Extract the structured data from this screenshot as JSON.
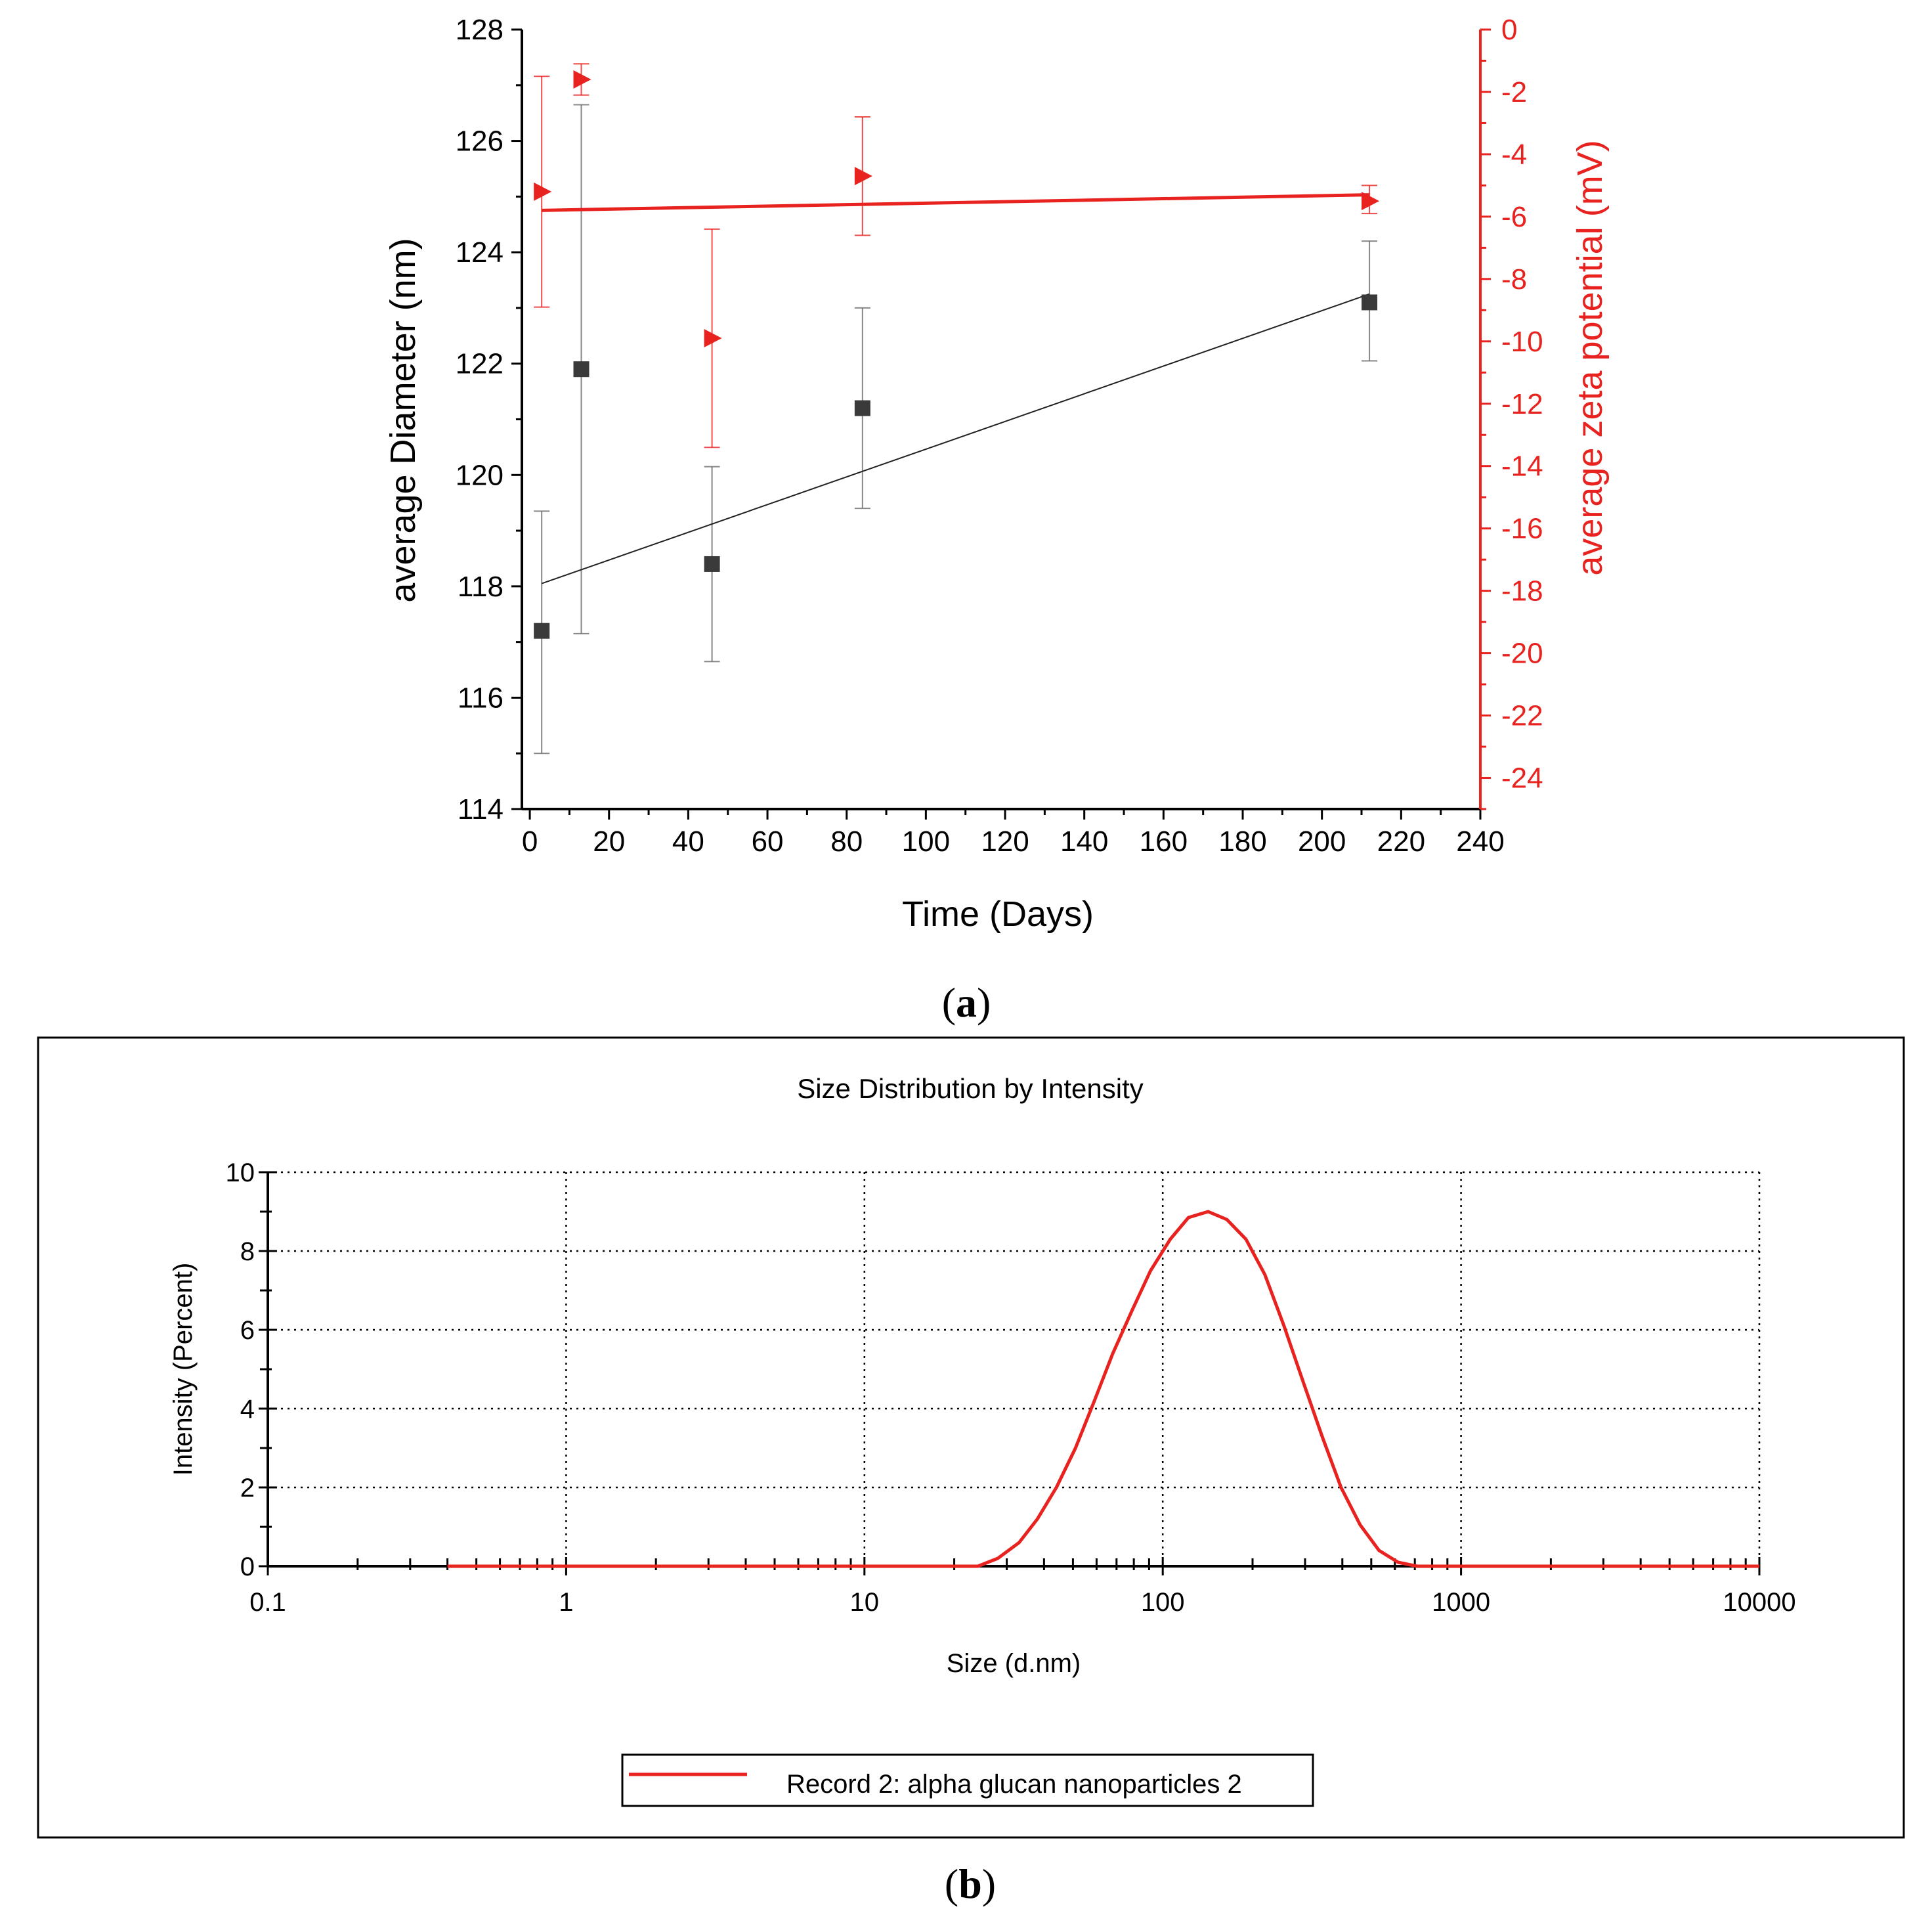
{
  "colors": {
    "red": "#e8221f",
    "dark": "#3a3a3a",
    "black": "#000000",
    "grid": "#000000"
  },
  "panel_a_label": {
    "open": "(",
    "letter": "a",
    "close": ")"
  },
  "panel_b_label": {
    "open": "(",
    "letter": "b",
    "close": ")"
  },
  "chart_data": [
    {
      "type": "scatter",
      "title": "",
      "xlabel": "Time (Days)",
      "ylabel": "average Diameter (nm)",
      "y2label": "average zeta potential (mV)",
      "xlim": [
        -2,
        240
      ],
      "ylim": [
        114,
        128
      ],
      "y2lim": [
        -25,
        0
      ],
      "xticks": [
        0,
        20,
        40,
        60,
        80,
        100,
        120,
        140,
        160,
        180,
        200,
        220,
        240
      ],
      "yticks": [
        114,
        116,
        118,
        120,
        122,
        124,
        126,
        128
      ],
      "y2ticks": [
        0,
        -2,
        -4,
        -6,
        -8,
        -10,
        -12,
        -14,
        -16,
        -18,
        -20,
        -22,
        -24
      ],
      "series": [
        {
          "name": "average Diameter",
          "axis": "left",
          "marker": "square",
          "x": [
            3,
            13,
            46,
            84,
            212
          ],
          "y": [
            117.2,
            121.9,
            118.4,
            121.2,
            123.1
          ],
          "err_low": [
            115.0,
            117.15,
            116.65,
            119.4,
            122.05
          ],
          "err_high": [
            119.35,
            126.65,
            120.15,
            123.0,
            124.2
          ],
          "fit": {
            "x": [
              3,
              212
            ],
            "y": [
              118.05,
              123.25
            ]
          }
        },
        {
          "name": "average zeta potential",
          "axis": "right",
          "marker": "triangle-right",
          "x": [
            3,
            13,
            46,
            84,
            212
          ],
          "y": [
            -5.2,
            -1.6,
            -9.9,
            -4.7,
            -5.5
          ],
          "err_low": [
            -8.9,
            -2.1,
            -13.4,
            -6.6,
            -5.9
          ],
          "err_high": [
            -1.5,
            -1.1,
            -6.4,
            -2.8,
            -5.0
          ],
          "fit": {
            "x": [
              3,
              212
            ],
            "y": [
              -5.8,
              -5.3
            ]
          }
        }
      ]
    },
    {
      "type": "line",
      "title": "Size Distribution by Intensity",
      "xlabel": "Size (d.nm)",
      "ylabel": "Intensity (Percent)",
      "xscale": "log",
      "xlim": [
        0.1,
        10000
      ],
      "ylim": [
        0,
        10
      ],
      "xticks": [
        "0.1",
        "1",
        "10",
        "100",
        "1000",
        "10000"
      ],
      "yticks": [
        "0",
        "2",
        "4",
        "6",
        "8",
        "10"
      ],
      "grid": true,
      "legend": "bottom-center",
      "series": [
        {
          "name": "Record 2: alpha glucan nanoparticles 2",
          "x": [
            0.4,
            24,
            28,
            33,
            38,
            44,
            51,
            59,
            68,
            79,
            91,
            106,
            122,
            142,
            164,
            190,
            220,
            255,
            295,
            342,
            396,
            459,
            531,
            615,
            712,
            10000
          ],
          "y": [
            0,
            0,
            0.2,
            0.6,
            1.2,
            2.0,
            3.0,
            4.2,
            5.4,
            6.5,
            7.5,
            8.3,
            8.85,
            9.0,
            8.8,
            8.3,
            7.4,
            6.1,
            4.7,
            3.3,
            2.0,
            1.05,
            0.4,
            0.1,
            0,
            0
          ]
        }
      ]
    }
  ]
}
